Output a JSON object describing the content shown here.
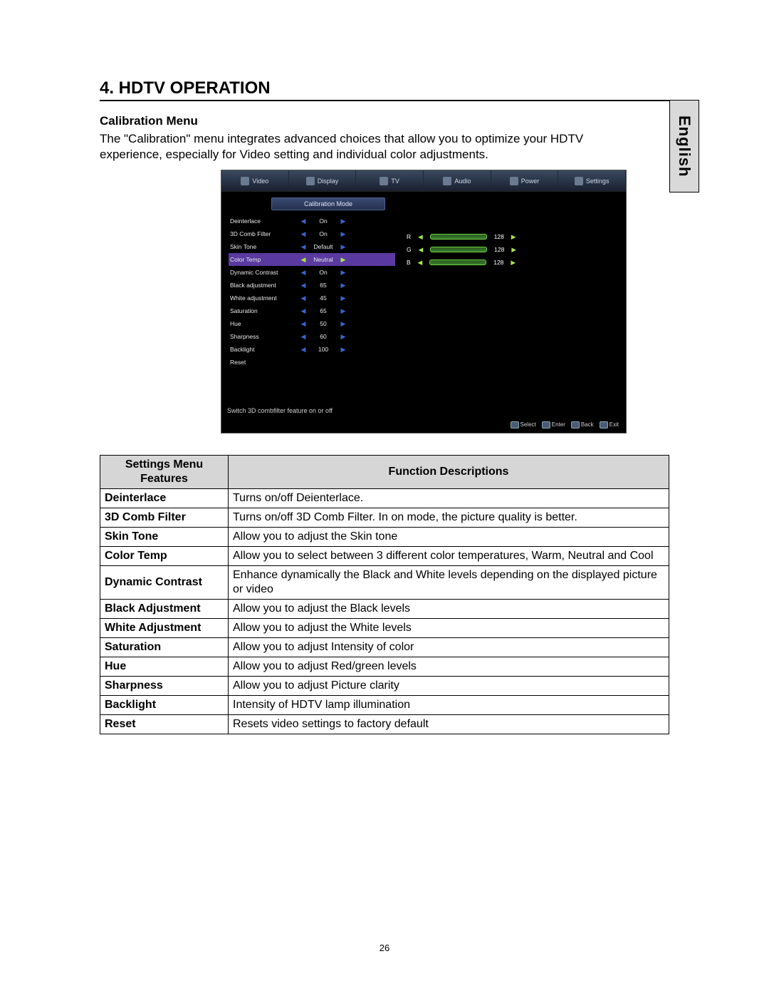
{
  "lang_tab": "English",
  "section_title": "4.    HDTV OPERATION",
  "sub_title": "Calibration Menu",
  "intro": "The \"Calibration\" menu integrates advanced  choices that allow you to optimize your HDTV experience, especially for Video setting and individual color adjustments.",
  "osd": {
    "tabs": [
      "Video",
      "Display",
      "TV",
      "Audio",
      "Power",
      "Settings"
    ],
    "mode_header": "Calibration Mode",
    "rows": [
      {
        "label": "Deinterlace",
        "value": "On",
        "selected": false
      },
      {
        "label": "3D Comb Filter",
        "value": "On",
        "selected": false
      },
      {
        "label": "Skin Tone",
        "value": "Default",
        "selected": false
      },
      {
        "label": "Color Temp",
        "value": "Neutral",
        "selected": true
      },
      {
        "label": "Dynamic Contrast",
        "value": "On",
        "selected": false
      },
      {
        "label": "Black adjustment",
        "value": "65",
        "selected": false
      },
      {
        "label": "White adjustment",
        "value": "45",
        "selected": false
      },
      {
        "label": "Saturation",
        "value": "65",
        "selected": false
      },
      {
        "label": "Hue",
        "value": "50",
        "selected": false
      },
      {
        "label": "Sharpness",
        "value": "60",
        "selected": false
      },
      {
        "label": "Backlight",
        "value": "100",
        "selected": false
      },
      {
        "label": "Reset",
        "value": "",
        "selected": false
      }
    ],
    "rgb": [
      {
        "ch": "R",
        "val": "128"
      },
      {
        "ch": "G",
        "val": "128"
      },
      {
        "ch": "B",
        "val": "128"
      }
    ],
    "hint": "Switch 3D combfilter feature  on or off",
    "footer": [
      "Select",
      "Enter",
      "Back",
      "Exit"
    ]
  },
  "table_header_left": "Settings Menu Features",
  "table_header_right": "Function Descriptions",
  "table_rows": [
    {
      "feature": "Deinterlace",
      "desc": "Turns on/off Deienterlace."
    },
    {
      "feature": "3D Comb Filter",
      "desc": "Turns on/off 3D Comb Filter. In on mode, the picture quality is better."
    },
    {
      "feature": "Skin Tone",
      "desc": "Allow you to adjust the Skin tone"
    },
    {
      "feature": "Color Temp",
      "desc": "Allow you to select between 3 different color temperatures, Warm, Neutral and Cool"
    },
    {
      "feature": "Dynamic Contrast",
      "desc": "Enhance dynamically the Black and White levels depending on the displayed picture or video"
    },
    {
      "feature": "Black Adjustment",
      "desc": "Allow you to adjust the Black levels"
    },
    {
      "feature": "White Adjustment",
      "desc": "Allow you to adjust the White levels"
    },
    {
      "feature": "Saturation",
      "desc": "Allow you to adjust Intensity of color"
    },
    {
      "feature": "Hue",
      "desc": "Allow you to  adjust  Red/green levels"
    },
    {
      "feature": "Sharpness",
      "desc": "Allow you to  adjust  Picture clarity"
    },
    {
      "feature": "Backlight",
      "desc": "Intensity of HDTV lamp illumination"
    },
    {
      "feature": "Reset",
      "desc": "Resets video settings to factory default"
    }
  ],
  "page_number": "26"
}
